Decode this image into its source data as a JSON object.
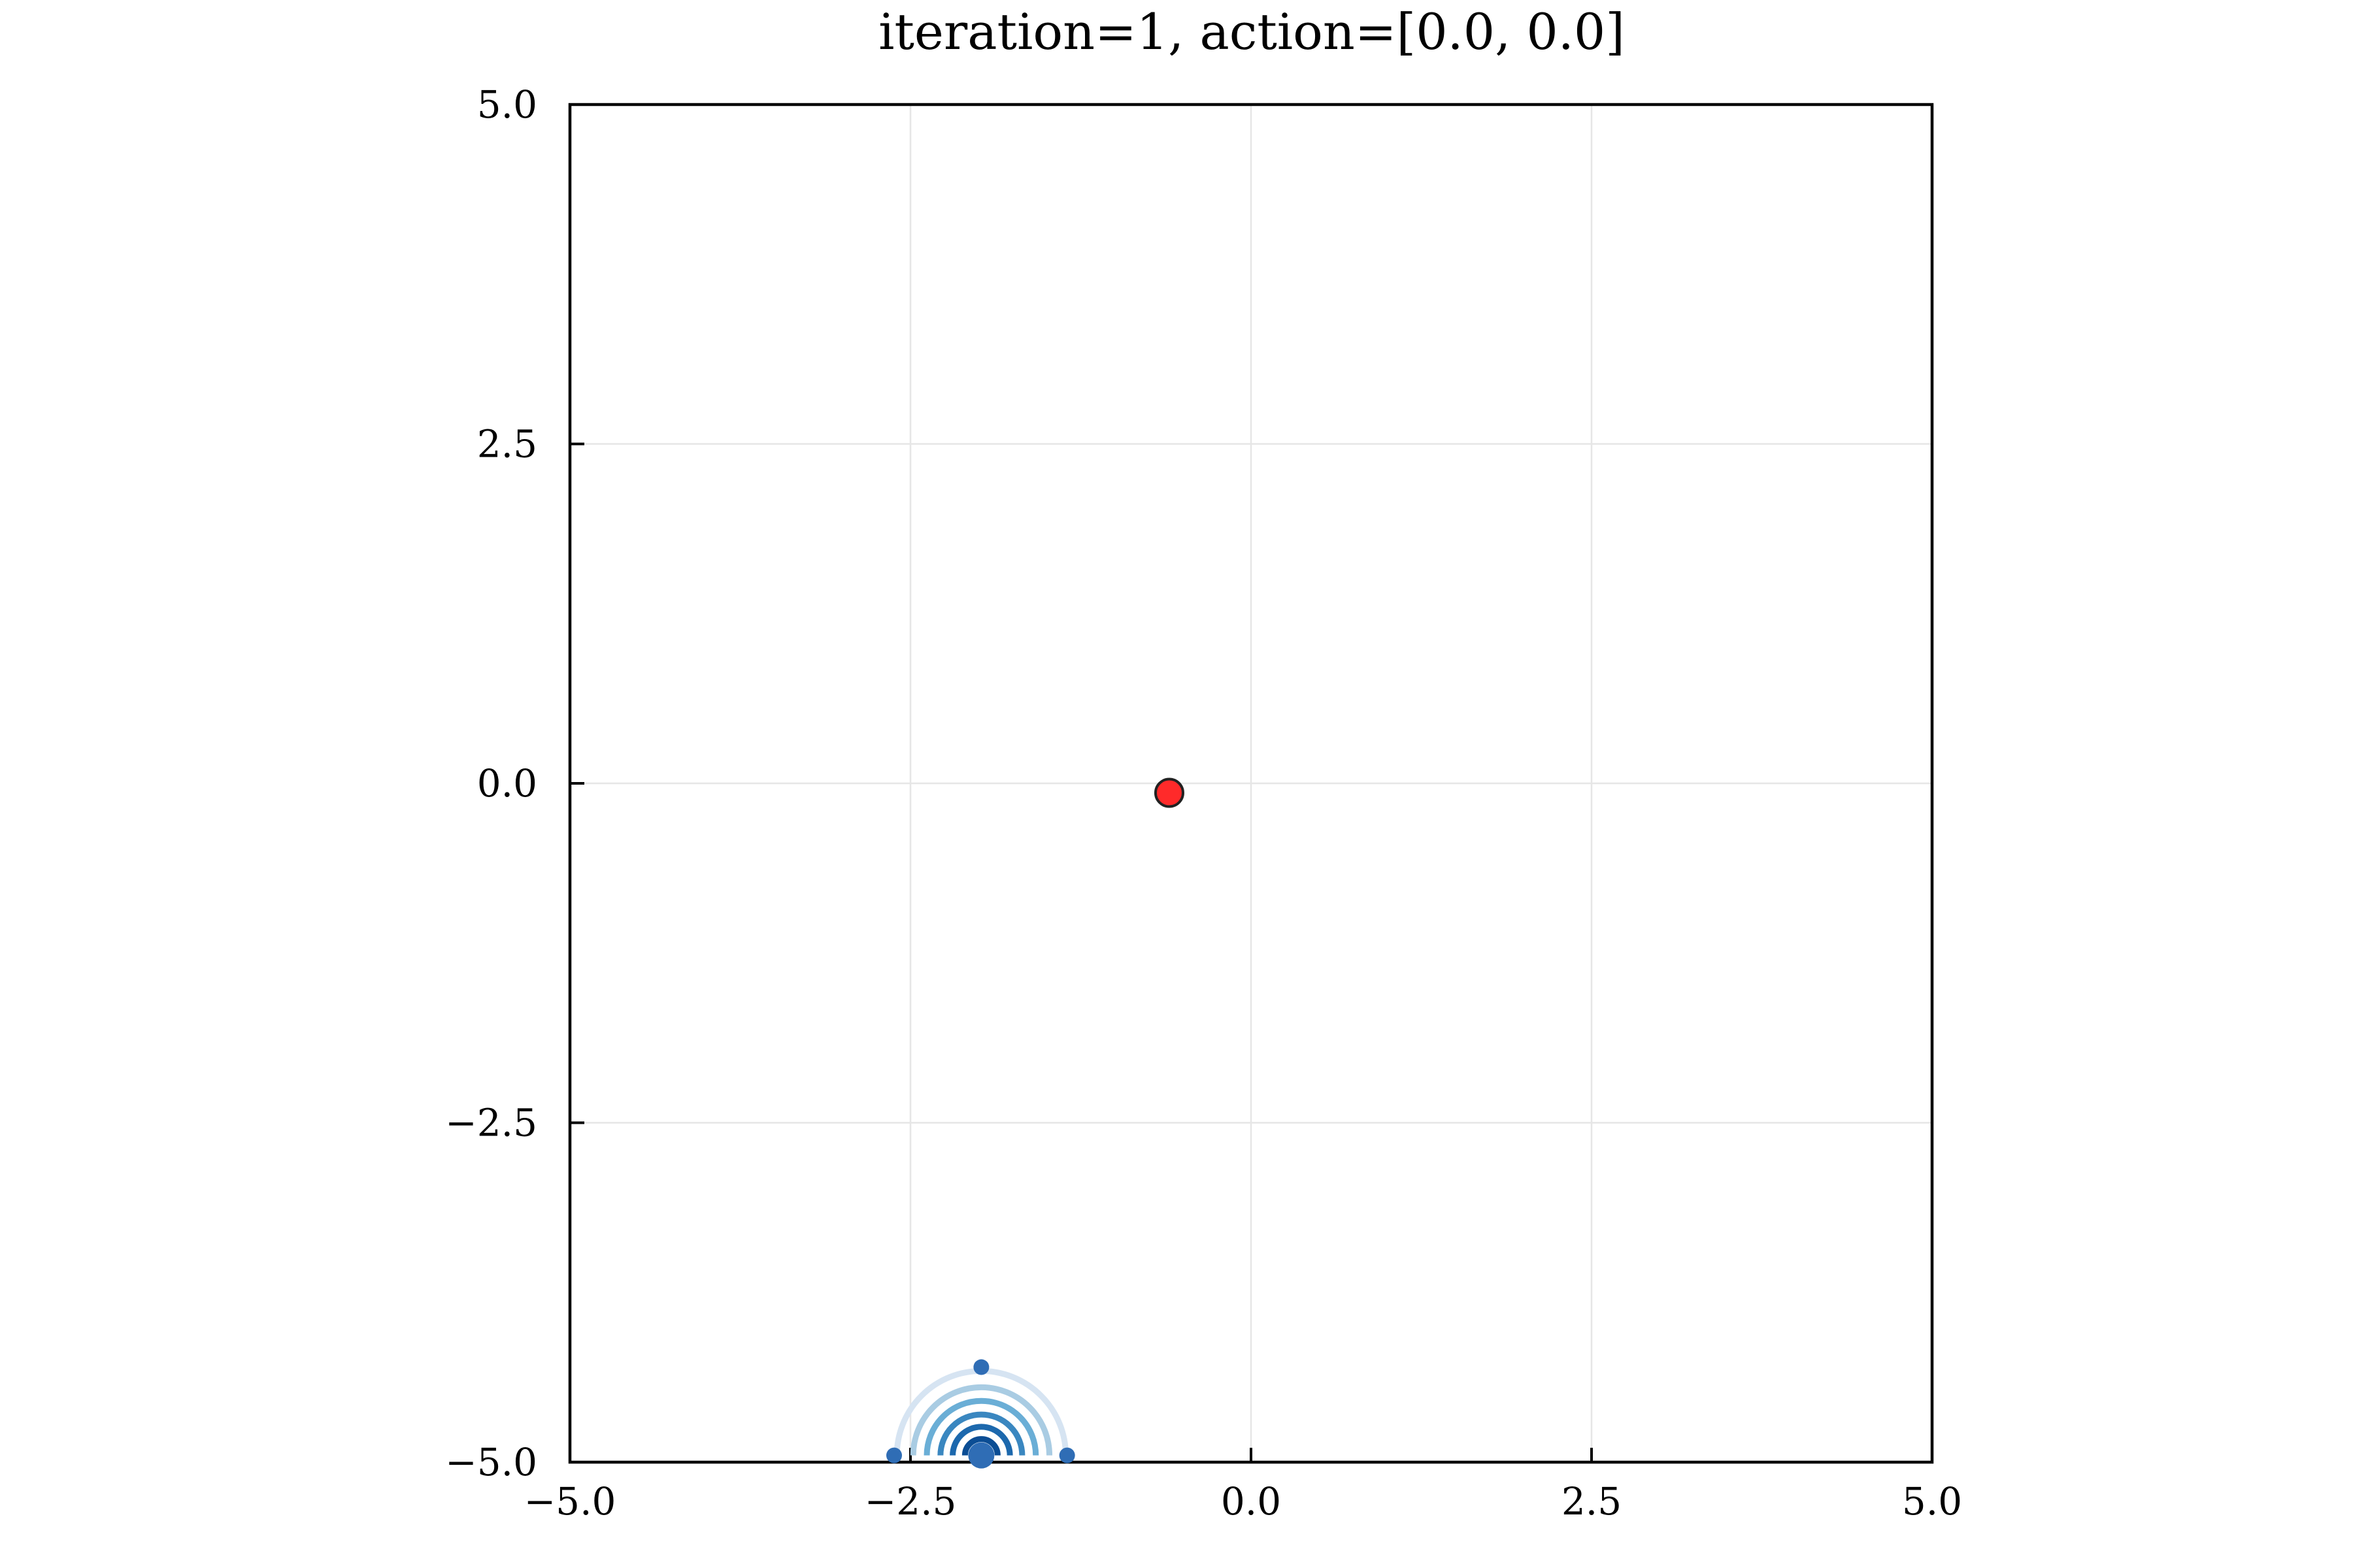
{
  "chart_data": {
    "type": "scatter",
    "title": "iteration=1, action=[0.0, 0.0]",
    "xlabel": "",
    "ylabel": "",
    "xlim": [
      -5.0,
      5.0
    ],
    "ylim": [
      -5.0,
      5.0
    ],
    "grid": true,
    "legend": "none",
    "x_ticks": [
      -5.0,
      -2.5,
      0.0,
      2.5,
      5.0
    ],
    "x_tick_labels": [
      "−5.0",
      "−2.5",
      "0.0",
      "2.5",
      "5.0"
    ],
    "y_ticks": [
      -5.0,
      -2.5,
      0.0,
      2.5,
      5.0
    ],
    "y_tick_labels": [
      "−5.0",
      "−2.5",
      "0.0",
      "2.5",
      "5.0"
    ],
    "agent": {
      "x": -0.6,
      "y": -0.07,
      "color": "#ff2a2a"
    },
    "distribution": {
      "center": {
        "x": -1.98,
        "y": -4.95
      },
      "sigma_points": [
        {
          "x": -1.98,
          "y": -4.95
        },
        {
          "x": -1.98,
          "y": -4.3
        },
        {
          "x": -2.62,
          "y": -4.95
        },
        {
          "x": -1.35,
          "y": -4.95
        }
      ],
      "contour_radii": [
        0.62,
        0.5,
        0.4,
        0.3,
        0.21,
        0.12
      ],
      "contour_colors": [
        "#d6e4f2",
        "#a9cce3",
        "#6aaed6",
        "#3a87c0",
        "#1c68ad",
        "#0b4d94"
      ],
      "point_color": "#2f6db5"
    }
  }
}
